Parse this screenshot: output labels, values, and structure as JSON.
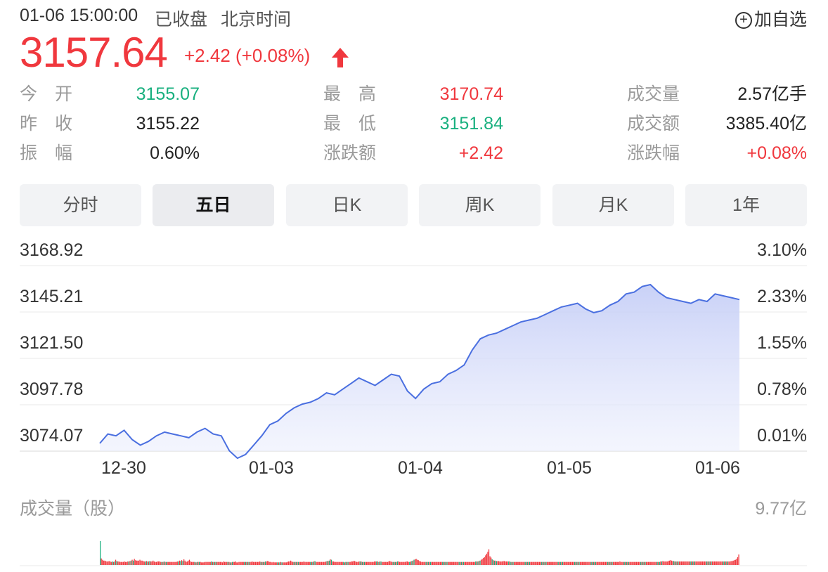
{
  "header": {
    "timestamp": "01-06 15:00:00",
    "status": "已收盘",
    "timezone": "北京时间",
    "watch_label": "加自选",
    "watch_icon": "plus-circle-icon"
  },
  "quote": {
    "price": "3157.64",
    "change": "+2.42 (+0.08%)",
    "direction_icon": "up-arrow-icon",
    "up_color": "#f0383e",
    "down_color": "#19b07f"
  },
  "stats": [
    {
      "label": "今　开",
      "value": "3155.07",
      "tone": "green"
    },
    {
      "label": "最　高",
      "value": "3170.74",
      "tone": "red"
    },
    {
      "label": "成交量",
      "value": "2.57亿手",
      "tone": "dark"
    },
    {
      "label": "昨　收",
      "value": "3155.22",
      "tone": "dark"
    },
    {
      "label": "最　低",
      "value": "3151.84",
      "tone": "green"
    },
    {
      "label": "成交额",
      "value": "3385.40亿",
      "tone": "dark"
    },
    {
      "label": "振　幅",
      "value": "0.60%",
      "tone": "dark"
    },
    {
      "label": "涨跌额",
      "value": "+2.42",
      "tone": "red"
    },
    {
      "label": "涨跌幅",
      "value": "+0.08%",
      "tone": "red"
    }
  ],
  "tabs": [
    {
      "label": "分时",
      "active": false
    },
    {
      "label": "五日",
      "active": true
    },
    {
      "label": "日K",
      "active": false
    },
    {
      "label": "周K",
      "active": false
    },
    {
      "label": "月K",
      "active": false
    },
    {
      "label": "1年",
      "active": false
    }
  ],
  "chart_data": {
    "type": "area",
    "y_left_ticks": [
      "3168.92",
      "3145.21",
      "3121.50",
      "3097.78",
      "3074.07"
    ],
    "y_right_ticks": [
      "3.10%",
      "2.33%",
      "1.55%",
      "0.78%",
      "0.01%"
    ],
    "ylim": [
      3074.07,
      3168.92
    ],
    "x_ticks": [
      "12-30",
      "01-03",
      "01-04",
      "01-05",
      "01-06"
    ],
    "line_color": "#4a6fe0",
    "series": [
      {
        "values": [
          3076,
          3081,
          3080,
          3083,
          3078,
          3075,
          3077,
          3080,
          3082,
          3081,
          3080,
          3079,
          3082,
          3084,
          3081,
          3080,
          3072,
          3068,
          3070,
          3075,
          3080,
          3086,
          3088,
          3092,
          3095,
          3097,
          3098,
          3100,
          3103,
          3102,
          3105,
          3108,
          3111,
          3109,
          3107,
          3110,
          3113,
          3112,
          3104,
          3100,
          3105,
          3108,
          3109,
          3113,
          3115,
          3118,
          3126,
          3132,
          3134,
          3135,
          3137,
          3139,
          3141,
          3142,
          3143,
          3145,
          3147,
          3149,
          3150,
          3151,
          3148,
          3146,
          3147,
          3150,
          3152,
          3156,
          3157,
          3160,
          3161,
          3157,
          3154,
          3153,
          3152,
          3151,
          3153,
          3152,
          3156,
          3155,
          3154,
          3153
        ]
      }
    ],
    "volume": {
      "title": "成交量（股）",
      "max_label": "9.77亿",
      "up_color": "#f0383e",
      "down_color": "#19b07f",
      "values": [
        0.55,
        0.15,
        0.12,
        0.1,
        0.1,
        0.09,
        0.08,
        0.08,
        0.09,
        0.08,
        0.07,
        0.08,
        0.07,
        0.08,
        0.12,
        0.09,
        0.08,
        0.08,
        0.07,
        0.07,
        0.07,
        0.07,
        0.08,
        0.07,
        0.07,
        0.08,
        0.08,
        0.09,
        0.1,
        0.12,
        0.1,
        0.14,
        0.11,
        0.1,
        0.1,
        0.1,
        0.12,
        0.1,
        0.1,
        0.09,
        0.08,
        0.08,
        0.09,
        0.08,
        0.08,
        0.09,
        0.08,
        0.08,
        0.1,
        0.08,
        0.07,
        0.07,
        0.08,
        0.08,
        0.08,
        0.07,
        0.07,
        0.07,
        0.08,
        0.07,
        0.07,
        0.07,
        0.07,
        0.07,
        0.07,
        0.07,
        0.07,
        0.07,
        0.07,
        0.07,
        0.08,
        0.08,
        0.1,
        0.09,
        0.11,
        0.09,
        0.13,
        0.1,
        0.07,
        0.08,
        0.1,
        0.12,
        0.08,
        0.07,
        0.07,
        0.07,
        0.07,
        0.06,
        0.07,
        0.07,
        0.07,
        0.07,
        0.06,
        0.06,
        0.06,
        0.07,
        0.07,
        0.07,
        0.07,
        0.07,
        0.07,
        0.08,
        0.07,
        0.07,
        0.07,
        0.07,
        0.07,
        0.07,
        0.07,
        0.07,
        0.07,
        0.06,
        0.08,
        0.07,
        0.07,
        0.07,
        0.07,
        0.07,
        0.06,
        0.06,
        0.07,
        0.07,
        0.07,
        0.08,
        0.06,
        0.06,
        0.07,
        0.07,
        0.07,
        0.07,
        0.07,
        0.07,
        0.07,
        0.07,
        0.07,
        0.07,
        0.07,
        0.07,
        0.08,
        0.07,
        0.07,
        0.07,
        0.07,
        0.07,
        0.07,
        0.08,
        0.07,
        0.07,
        0.07,
        0.07,
        0.08,
        0.08,
        0.09,
        0.08,
        0.07,
        0.07,
        0.06,
        0.07,
        0.06,
        0.06,
        0.06,
        0.06,
        0.06,
        0.06,
        0.07,
        0.06,
        0.06,
        0.06,
        0.06,
        0.06,
        0.07,
        0.08,
        0.08,
        0.1,
        0.08,
        0.07,
        0.07,
        0.07,
        0.07,
        0.07,
        0.07,
        0.07,
        0.07,
        0.07,
        0.07,
        0.08,
        0.07,
        0.07,
        0.07,
        0.07,
        0.07,
        0.07,
        0.07,
        0.07,
        0.08,
        0.09,
        0.07,
        0.07,
        0.07,
        0.07,
        0.07,
        0.07,
        0.07,
        0.07,
        0.07,
        0.08,
        0.09,
        0.09,
        0.1,
        0.13,
        0.12,
        0.08,
        0.08,
        0.07,
        0.07,
        0.07,
        0.07,
        0.07,
        0.07,
        0.07,
        0.07,
        0.07,
        0.06,
        0.07,
        0.07,
        0.07,
        0.07,
        0.07,
        0.08,
        0.08,
        0.09,
        0.09,
        0.08,
        0.07,
        0.07,
        0.08,
        0.08,
        0.08,
        0.07,
        0.07,
        0.07,
        0.07,
        0.07,
        0.07,
        0.07,
        0.07,
        0.07,
        0.07,
        0.07,
        0.08,
        0.08,
        0.08,
        0.08,
        0.07,
        0.08,
        0.08,
        0.07,
        0.07,
        0.07,
        0.07,
        0.07,
        0.07,
        0.08,
        0.09,
        0.08,
        0.07,
        0.07,
        0.07,
        0.07,
        0.07,
        0.08,
        0.08,
        0.07,
        0.07,
        0.07,
        0.07,
        0.07,
        0.07,
        0.08,
        0.08,
        0.07,
        0.07,
        0.08,
        0.09,
        0.1,
        0.12,
        0.13,
        0.14,
        0.12,
        0.11,
        0.09,
        0.08,
        0.07,
        0.07,
        0.07,
        0.07,
        0.07,
        0.07,
        0.07,
        0.07,
        0.07,
        0.07,
        0.07,
        0.07,
        0.07,
        0.07,
        0.07,
        0.07,
        0.07,
        0.07,
        0.07,
        0.07,
        0.07,
        0.07,
        0.07,
        0.07,
        0.07,
        0.07,
        0.07,
        0.07,
        0.07,
        0.07,
        0.07,
        0.07,
        0.07,
        0.07,
        0.07,
        0.07,
        0.07,
        0.07,
        0.07,
        0.07,
        0.07,
        0.07,
        0.07,
        0.07,
        0.07,
        0.07,
        0.07,
        0.07,
        0.07,
        0.08,
        0.08,
        0.08,
        0.09,
        0.1,
        0.12,
        0.14,
        0.16,
        0.18,
        0.22,
        0.26,
        0.3,
        0.36,
        0.2,
        0.17,
        0.13,
        0.11,
        0.1,
        0.1,
        0.09,
        0.09,
        0.09,
        0.08,
        0.08,
        0.08,
        0.09,
        0.09,
        0.08,
        0.08,
        0.08,
        0.08,
        0.08,
        0.07,
        0.07,
        0.07,
        0.07,
        0.07,
        0.07,
        0.07,
        0.07,
        0.07,
        0.07,
        0.07,
        0.07,
        0.07,
        0.07,
        0.07,
        0.07,
        0.07,
        0.07,
        0.07,
        0.07,
        0.07,
        0.07,
        0.07,
        0.07,
        0.07,
        0.07,
        0.07,
        0.07,
        0.07,
        0.07,
        0.07,
        0.07,
        0.07,
        0.07,
        0.07,
        0.07,
        0.07,
        0.07,
        0.07,
        0.07,
        0.07,
        0.07,
        0.07,
        0.07,
        0.07,
        0.07,
        0.07,
        0.07,
        0.07,
        0.07,
        0.07,
        0.07,
        0.07,
        0.07,
        0.07,
        0.07,
        0.07,
        0.07,
        0.07,
        0.07,
        0.07,
        0.07,
        0.07,
        0.07,
        0.07,
        0.07,
        0.07,
        0.07,
        0.07,
        0.07,
        0.07,
        0.07,
        0.07,
        0.07,
        0.07,
        0.07,
        0.07,
        0.07,
        0.07,
        0.07,
        0.07,
        0.07,
        0.07,
        0.07,
        0.07,
        0.07,
        0.07,
        0.07,
        0.07,
        0.07,
        0.07,
        0.07,
        0.07,
        0.07,
        0.07,
        0.07,
        0.07,
        0.07,
        0.07,
        0.08,
        0.07,
        0.07,
        0.07,
        0.07,
        0.07,
        0.07,
        0.07,
        0.07,
        0.07,
        0.07,
        0.07,
        0.07,
        0.07,
        0.07,
        0.07,
        0.07,
        0.07,
        0.07,
        0.07,
        0.07,
        0.07,
        0.07,
        0.07,
        0.07,
        0.07,
        0.07,
        0.07,
        0.07,
        0.07,
        0.07,
        0.07,
        0.07,
        0.07,
        0.07,
        0.07,
        0.07,
        0.08,
        0.08,
        0.09,
        0.08,
        0.08,
        0.08,
        0.08,
        0.09,
        0.1,
        0.11,
        0.1,
        0.09,
        0.09,
        0.08,
        0.08,
        0.08,
        0.08,
        0.08,
        0.08,
        0.08,
        0.08,
        0.08,
        0.08,
        0.08,
        0.08,
        0.08,
        0.08,
        0.08,
        0.08,
        0.08,
        0.08,
        0.08,
        0.08,
        0.08,
        0.08,
        0.08,
        0.08,
        0.08,
        0.08,
        0.08,
        0.08,
        0.08,
        0.08,
        0.08,
        0.08,
        0.08,
        0.08,
        0.08,
        0.08,
        0.08,
        0.08,
        0.08,
        0.08,
        0.08,
        0.08,
        0.08,
        0.08,
        0.08,
        0.08,
        0.08,
        0.08,
        0.08,
        0.08,
        0.08,
        0.09,
        0.09,
        0.1,
        0.11,
        0.12,
        0.14,
        0.18,
        0.24
      ]
    }
  }
}
